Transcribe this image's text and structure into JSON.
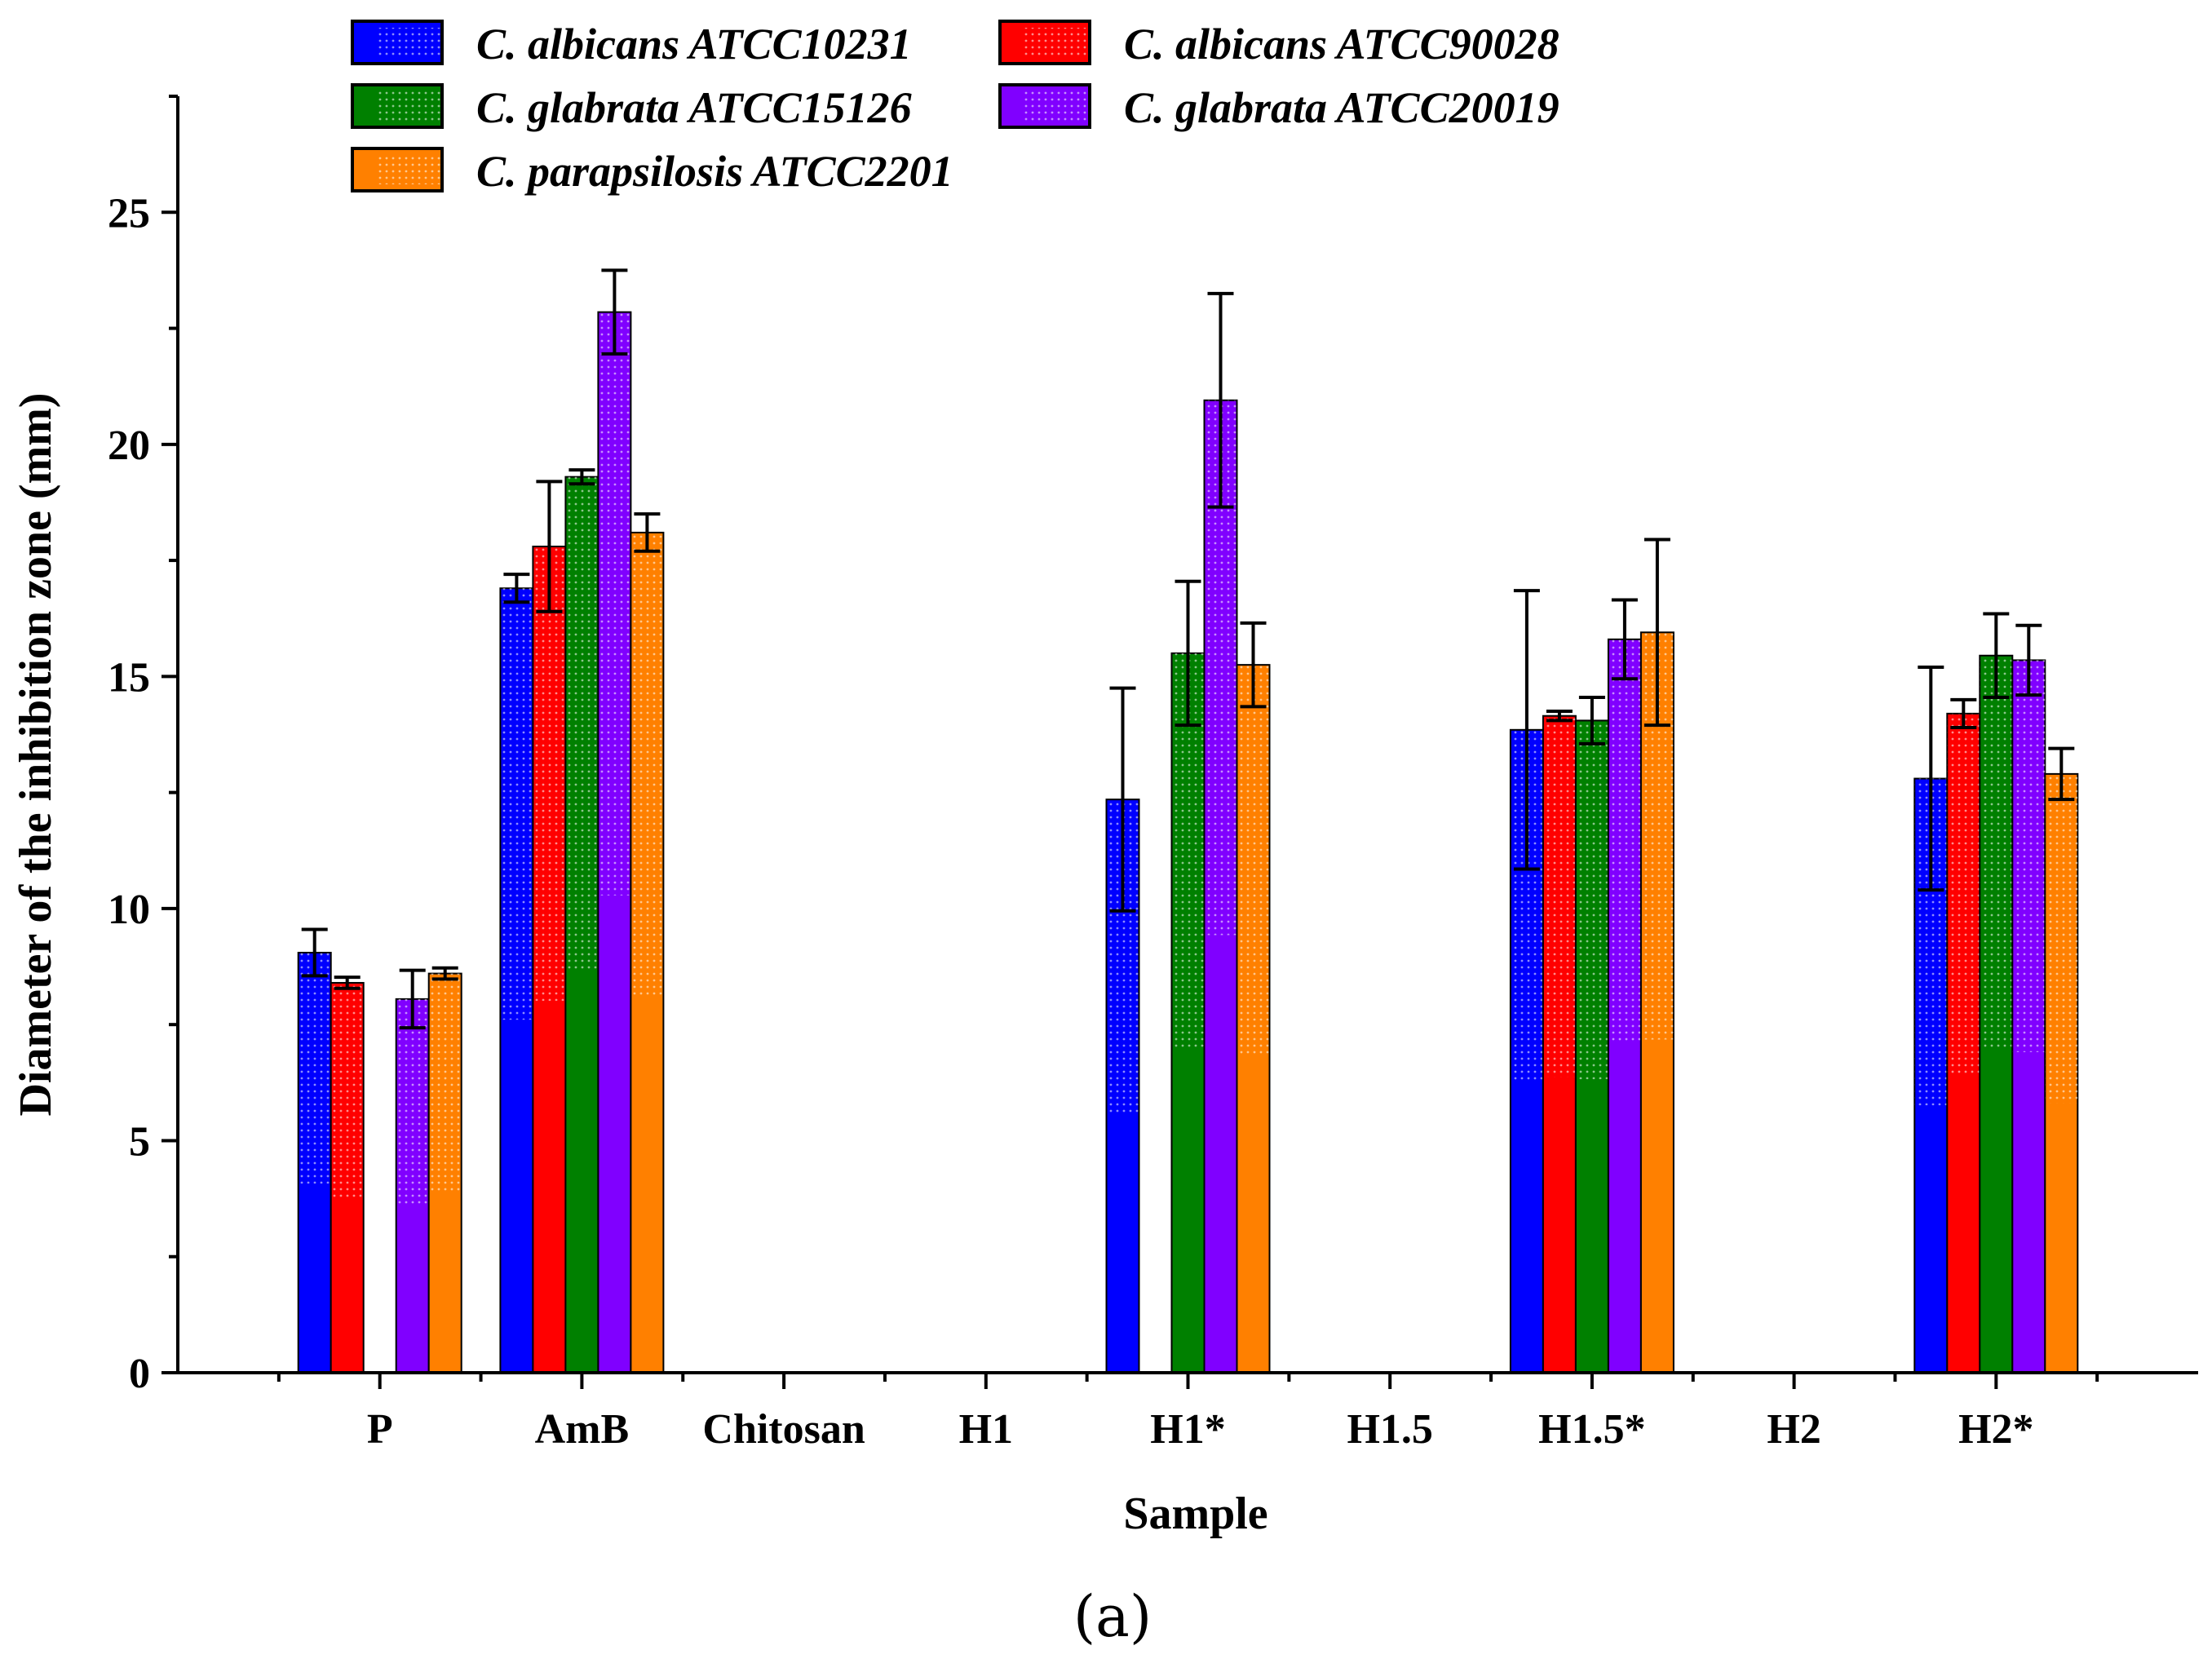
{
  "chart_data": {
    "type": "bar",
    "xlabel": "Sample",
    "ylabel": "Diameter of the inhibition zone (mm)",
    "caption": "(a)",
    "ylim": [
      0,
      27.5
    ],
    "yticks": [
      0,
      5,
      10,
      15,
      20,
      25
    ],
    "categories": [
      "P",
      "AmB",
      "Chitosan",
      "H1",
      "H1*",
      "H1.5",
      "H1.5*",
      "H2",
      "H2*"
    ],
    "legend_position": "top-left",
    "series": [
      {
        "name": "C. albicans ATCC10231",
        "color": "#0000ff",
        "values": [
          9.05,
          16.9,
          0,
          0,
          12.35,
          0,
          13.85,
          0,
          12.8
        ],
        "errors": [
          0.5,
          0.3,
          0,
          0,
          2.4,
          0,
          3.0,
          0,
          2.4
        ]
      },
      {
        "name": "C. albicans ATCC90028",
        "color": "#ff0000",
        "values": [
          8.4,
          17.8,
          0,
          0,
          0,
          0,
          14.15,
          0,
          14.2
        ],
        "errors": [
          0.12,
          1.4,
          0,
          0,
          0,
          0,
          0.1,
          0,
          0.3
        ]
      },
      {
        "name": "C. glabrata ATCC15126",
        "color": "#008000",
        "values": [
          0,
          19.3,
          0,
          0,
          15.5,
          0,
          14.05,
          0,
          15.45
        ],
        "errors": [
          0,
          0.15,
          0,
          0,
          1.55,
          0,
          0.5,
          0,
          0.9
        ]
      },
      {
        "name": "C. glabrata ATCC20019",
        "color": "#8000ff",
        "values": [
          8.05,
          22.85,
          0,
          0,
          20.95,
          0,
          15.8,
          0,
          15.35
        ],
        "errors": [
          0.62,
          0.9,
          0,
          0,
          2.3,
          0,
          0.85,
          0,
          0.75
        ]
      },
      {
        "name": "C. parapsilosis ATCC2201",
        "color": "#ff8000",
        "values": [
          8.6,
          18.1,
          0,
          0,
          15.25,
          0,
          15.95,
          0,
          12.9
        ],
        "errors": [
          0.12,
          0.4,
          0,
          0,
          0.9,
          0,
          2.0,
          0,
          0.55
        ]
      }
    ]
  }
}
